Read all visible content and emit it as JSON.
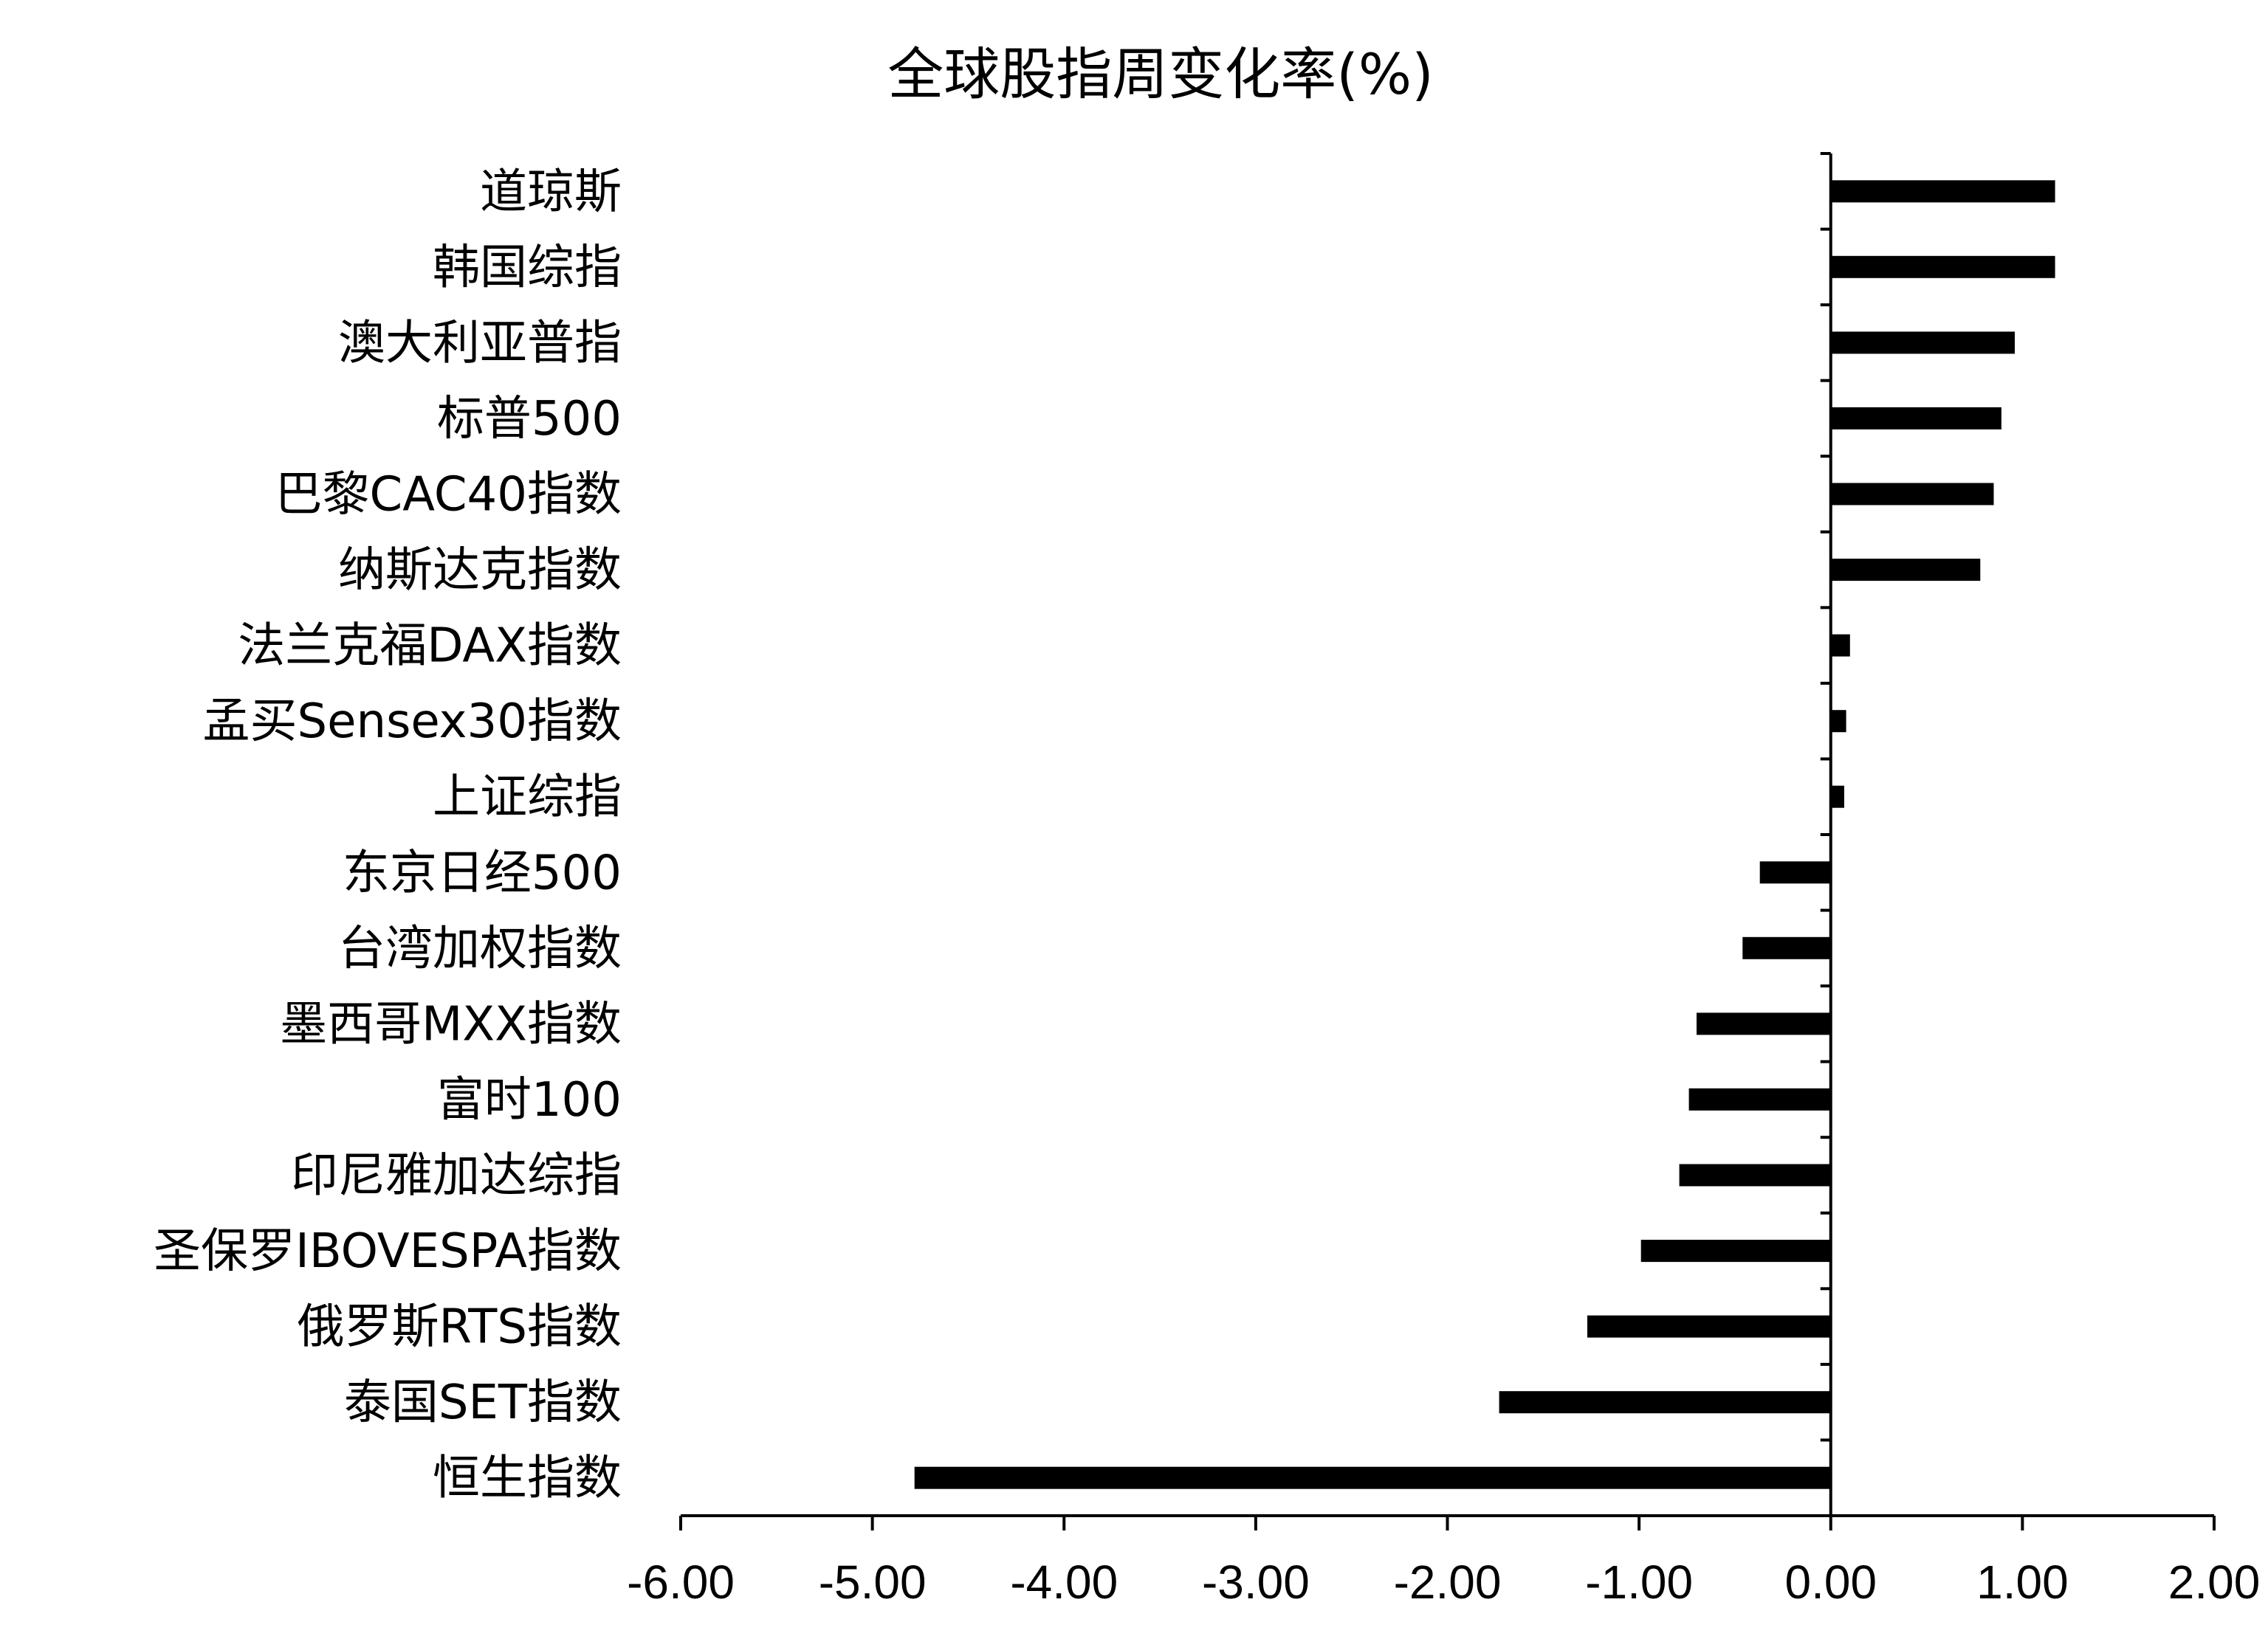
{
  "chart_data": {
    "type": "bar",
    "orientation": "horizontal",
    "title": "全球股指周变化率(%)",
    "xlabel": "",
    "ylabel": "",
    "xlim": [
      -6,
      2
    ],
    "xticks": [
      "-6.00",
      "-5.00",
      "-4.00",
      "-3.00",
      "-2.00",
      "-1.00",
      "0.00",
      "1.00",
      "2.00"
    ],
    "grid": false,
    "bar_color": "#000000",
    "categories": [
      "道琼斯",
      "韩国综指",
      "澳大利亚普指",
      "标普500",
      "巴黎CAC40指数",
      "纳斯达克指数",
      "法兰克福DAX指数",
      "孟买Sensex30指数",
      "上证综指",
      "东京日经500",
      "台湾加权指数",
      "墨西哥MXX指数",
      "富时100",
      "印尼雅加达综指",
      "圣保罗IBOVESPA指数",
      "俄罗斯RTS指数",
      "泰国SET指数",
      "恒生指数"
    ],
    "values": [
      1.17,
      1.17,
      0.96,
      0.89,
      0.85,
      0.78,
      0.1,
      0.08,
      0.07,
      -0.37,
      -0.46,
      -0.7,
      -0.74,
      -0.79,
      -0.99,
      -1.27,
      -1.73,
      -4.78
    ]
  }
}
